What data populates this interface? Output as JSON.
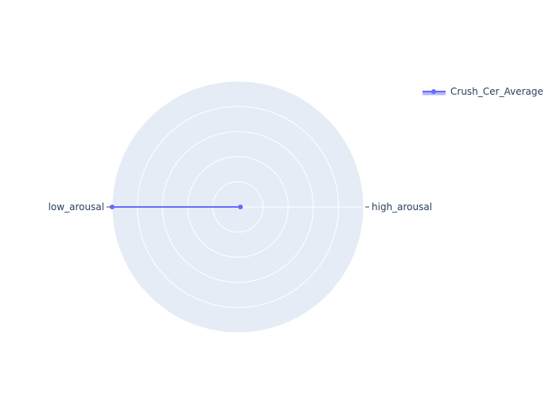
{
  "chart_data": {
    "type": "radar",
    "categories": [
      "high_arousal",
      "low_arousal"
    ],
    "series": [
      {
        "name": "Crush_Cer_Average",
        "values": [
          0.1,
          5.0
        ],
        "fill": "toself",
        "color": "#636efa",
        "fill_color": "rgba(99,110,250,0.5)"
      }
    ],
    "radial_range": [
      0,
      5
    ],
    "radial_gridlines": [
      1,
      2,
      3,
      4,
      5
    ],
    "show_radial_tick_labels": false,
    "polar_background": "#e5ecf6",
    "grid_color": "#ffffff",
    "legend_position": "top-right",
    "title": ""
  }
}
